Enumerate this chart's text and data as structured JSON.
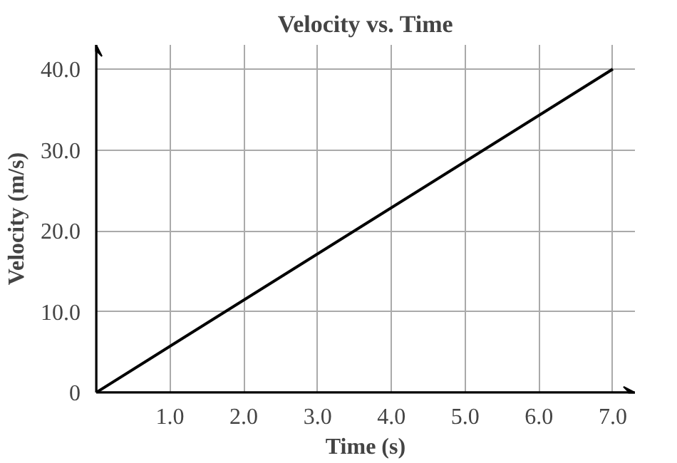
{
  "chart_data": {
    "type": "line",
    "title": "Velocity vs. Time",
    "xlabel": "Time (s)",
    "ylabel": "Velocity (m/s)",
    "x": [
      0,
      7
    ],
    "series": [
      {
        "color": "#000000",
        "values": [
          0,
          40
        ]
      }
    ],
    "xlim": [
      0,
      7.3
    ],
    "ylim": [
      0,
      43
    ],
    "xticks": [
      {
        "value": 0,
        "label": null
      },
      {
        "value": 1,
        "label": "1.0"
      },
      {
        "value": 2,
        "label": "2.0"
      },
      {
        "value": 3,
        "label": "3.0"
      },
      {
        "value": 4,
        "label": "4.0"
      },
      {
        "value": 5,
        "label": "5.0"
      },
      {
        "value": 6,
        "label": "6.0"
      },
      {
        "value": 7,
        "label": "7.0"
      }
    ],
    "yticks": [
      {
        "value": 0,
        "label": "0"
      },
      {
        "value": 10,
        "label": "10.0"
      },
      {
        "value": 20,
        "label": "20.0"
      },
      {
        "value": 30,
        "label": "30.0"
      },
      {
        "value": 40,
        "label": "40.0"
      }
    ],
    "grid": true,
    "line_style": "solid"
  }
}
